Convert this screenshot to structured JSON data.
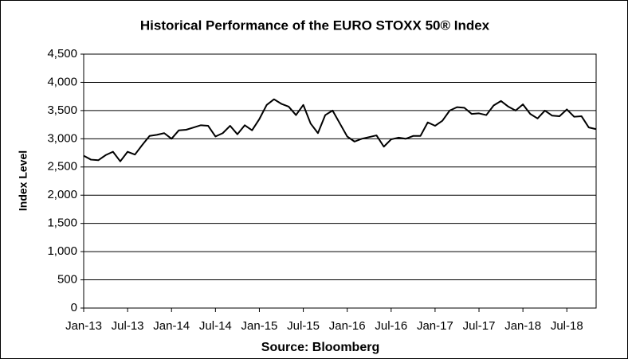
{
  "chart_data": {
    "type": "line",
    "title": "Historical Performance of the EURO STOXX 50® Index",
    "y_label": "Index Level",
    "x_label": "Source: Bloomberg",
    "categories": [
      "Jan-13",
      null,
      null,
      null,
      null,
      null,
      "Jul-13",
      null,
      null,
      null,
      null,
      null,
      "Jan-14",
      null,
      null,
      null,
      null,
      null,
      "Jul-14",
      null,
      null,
      null,
      null,
      null,
      "Jan-15",
      null,
      null,
      null,
      null,
      null,
      "Jul-15",
      null,
      null,
      null,
      null,
      null,
      "Jan-16",
      null,
      null,
      null,
      null,
      null,
      "Jul-16",
      null,
      null,
      null,
      null,
      null,
      "Jan-17",
      null,
      null,
      null,
      null,
      null,
      "Jul-17",
      null,
      null,
      null,
      null,
      null,
      "Jan-18",
      null,
      null,
      null,
      null,
      null,
      "Jul-18",
      null,
      null,
      null,
      null
    ],
    "values": [
      2700,
      2630,
      2620,
      2710,
      2770,
      2600,
      2770,
      2720,
      2890,
      3050,
      3070,
      3100,
      3000,
      3150,
      3160,
      3200,
      3240,
      3230,
      3040,
      3100,
      3230,
      3080,
      3240,
      3150,
      3350,
      3600,
      3700,
      3620,
      3570,
      3420,
      3600,
      3270,
      3100,
      3420,
      3500,
      3270,
      3040,
      2950,
      3000,
      3030,
      3060,
      2860,
      2990,
      3020,
      3000,
      3050,
      3050,
      3290,
      3230,
      3320,
      3500,
      3560,
      3550,
      3440,
      3450,
      3420,
      3590,
      3670,
      3570,
      3500,
      3610,
      3440,
      3360,
      3500,
      3410,
      3400,
      3520,
      3390,
      3400,
      3200,
      3170
    ],
    "color": "#000000",
    "ylim": [
      0,
      4500
    ],
    "yticks": [
      0,
      500,
      {
        "value": 1000,
        "label": "1,000"
      },
      {
        "value": 1500,
        "label": "1,500"
      },
      {
        "value": 2000,
        "label": "2,000"
      },
      {
        "value": 2500,
        "label": "2,500"
      },
      {
        "value": 3000,
        "label": "3,000"
      },
      {
        "value": 3500,
        "label": "3,500"
      },
      {
        "value": 4000,
        "label": "4,000"
      },
      {
        "value": 4500,
        "label": "4,500"
      }
    ],
    "grid": true
  }
}
